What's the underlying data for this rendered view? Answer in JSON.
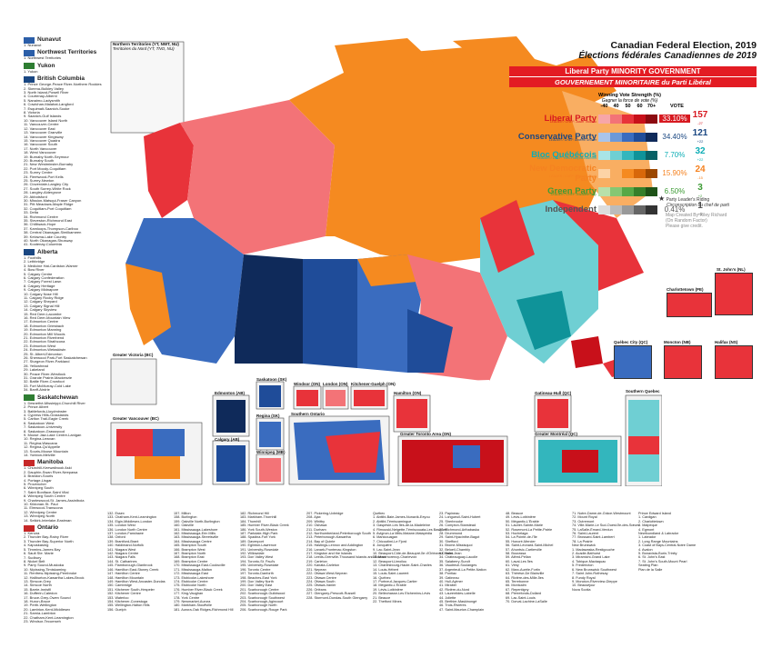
{
  "title": "Canadian Federal Election, 2019",
  "subtitle": "Élections fédérales Canadiennes de 2019",
  "government": "Liberal Party MINORITY GOVERNMENT",
  "government_fr": "GOUVERNEMENT MINORITAIRE du Parti Libéral",
  "wvs_title": "Winning Vote Strength (%)",
  "wvs_title_fr": "Gagner la force de vote (%)",
  "scale": [
    "-40",
    "40",
    "50",
    "60",
    "70+"
  ],
  "vote_header": "VOTE",
  "parties": [
    {
      "name": "Liberal Party",
      "leader": "LEADER / CHEF: Justin Trudeau",
      "vote": "33.10%",
      "seats": "157",
      "seats_sub": "-27",
      "color": "#d71920",
      "swatches": [
        "#f7a6a8",
        "#f37377",
        "#e8333a",
        "#c8101a",
        "#8c0a10"
      ]
    },
    {
      "name": "Conservative Party",
      "leader": "LEADER / CHEF: Andrew Scheer",
      "vote": "34.40%",
      "seats": "121",
      "seats_sub": "+22",
      "color": "#1a4782",
      "swatches": [
        "#a9c4ea",
        "#6c99d9",
        "#3a6cbf",
        "#1f4c99",
        "#0f2a5a"
      ]
    },
    {
      "name": "Bloc Québécois",
      "leader": "LEADER / CHEF: Yves-François Blanchet",
      "vote": "7.70%",
      "seats": "32",
      "seats_sub": "+22",
      "color": "#0dadb5",
      "swatches": [
        "#a8e4e6",
        "#6fcfd3",
        "#33b6bd",
        "#0f9399",
        "#086166"
      ]
    },
    {
      "name": "New Democratic Party",
      "leader": "LEADER / CHEF: Jagmeet Singh",
      "vote": "15.90%",
      "seats": "24",
      "seats_sub": "-15",
      "color": "#f58220",
      "swatches": [
        "#fcd3a6",
        "#f9ae62",
        "#f58a20",
        "#d8680a",
        "#9c4700"
      ]
    },
    {
      "name": "Green Party",
      "leader": "LEADER / CHEF: Elizabeth May",
      "vote": "6.50%",
      "seats": "3",
      "seats_sub": "+2",
      "color": "#3d9b35",
      "swatches": [
        "#b8e0a9",
        "#86c773",
        "#56a846",
        "#357f2a",
        "#1e5318"
      ]
    },
    {
      "name": "Independent",
      "leader": "",
      "vote": "0.41%",
      "seats": "1",
      "seats_sub": "+1",
      "color": "#555555",
      "swatches": [
        "#dddddd",
        "#bbbbbb",
        "#999999",
        "#666666",
        "#333333"
      ]
    }
  ],
  "star_legend": "Party Leader's Riding",
  "star_legend_fr": "Circonscription du chef de parti",
  "credit": [
    "Map Created By Riley Richard",
    "(On Random Factor)",
    "Please give credit."
  ],
  "insets": [
    {
      "label": "Northern Territories (YT, NWT, NU)"
    },
    {
      "label": "Greater Victoria (BC)"
    },
    {
      "label": "Greater Vancouver (BC)"
    },
    {
      "label": "Edmonton (AB)"
    },
    {
      "label": "Calgary (AB)"
    },
    {
      "label": "Saskatoon (SK)"
    },
    {
      "label": "Regina (SK)"
    },
    {
      "label": "Winnipeg (MB)"
    },
    {
      "label": "Windsor (ON)"
    },
    {
      "label": "London (ON)"
    },
    {
      "label": "Kitchener-Guelph (ON)"
    },
    {
      "label": "Hamilton (ON)"
    },
    {
      "label": "Southern Ontario"
    },
    {
      "label": "Greater Toronto Area (ON)"
    },
    {
      "label": "Gatineau-Hull (QC)"
    },
    {
      "label": "Greater Montréal (QC)"
    },
    {
      "label": "Kingston (ON)"
    },
    {
      "label": "Québec City (QC)"
    },
    {
      "label": "Moncton (NB)"
    },
    {
      "label": "Halifax (NS)"
    },
    {
      "label": "Charlottetown (PE)"
    },
    {
      "label": "St. John's (NL)"
    },
    {
      "label": "Southern Quebec"
    }
  ],
  "sidebar": {
    "provinces": [
      {
        "name": "Nunavut",
        "flag": "#2b5ea8",
        "ridings": [
          "1. Nunavut"
        ]
      },
      {
        "name": "Northwest Territories",
        "flag": "#2b5ea8",
        "ridings": [
          "1. Northwest Territories"
        ]
      },
      {
        "name": "Yukon",
        "flag": "#2e7d32",
        "ridings": [
          "1. Yukon"
        ]
      },
      {
        "name": "British Columbia",
        "flag": "#1a4782",
        "ridings": [
          "1. Prince George-Peace River-Northern Rockies",
          "2. Skeena-Bulkley Valley",
          "3. North Island-Powell River",
          "4. Courtenay-Alberni",
          "5. Nanaimo-Ladysmith",
          "6. Cowichan-Malahat-Langford",
          "7. Esquimalt-Saanich-Sooke",
          "8. Victoria",
          "9. Saanich-Gulf Islands",
          "10. Vancouver Island North",
          "11. Vancouver-Centre",
          "12. Vancouver East",
          "13. Vancouver Granville",
          "14. Vancouver Kingsway",
          "15. Vancouver Quadra",
          "16. Vancouver South",
          "17. North Vancouver",
          "18. West Vancouver",
          "19. Burnaby North-Seymour",
          "20. Burnaby South",
          "21. New Westminster-Burnaby",
          "22. Port Moody-Coquitlam",
          "23. Surrey Centre",
          "24. Fleetwood-Port Kells",
          "25. Surrey-Newton",
          "26. Cloverdale-Langley City",
          "27. South Surrey-White Rock",
          "28. Langley-Aldergrove",
          "29. Abbotsford",
          "30. Mission-Matsqui-Fraser Canyon",
          "31. Pitt Meadows-Maple Ridge",
          "32. Coquitlam-Port Coquitlam",
          "33. Delta",
          "34. Richmond Centre",
          "35. Steveston-Richmond East",
          "36. Chilliwack-Hope",
          "37. Kamloops-Thompson-Cariboo",
          "38. Central Okanagan-Similkameen",
          "39. Kelowna-Lake Country",
          "40. North Okanagan-Shuswap",
          "41. Kootenay-Columbia"
        ]
      },
      {
        "name": "Alberta",
        "flag": "#1a4782",
        "ridings": [
          "1. Foothills",
          "2. Lethbridge",
          "3. Medicine Hat-Cardston-Warner",
          "4. Bow River",
          "5. Calgary Centre",
          "6. Calgary Confederation",
          "7. Calgary Forest Lawn",
          "8. Calgary Heritage",
          "9. Calgary Midnapore",
          "10. Calgary Nose Hill",
          "11. Calgary Rocky Ridge",
          "12. Calgary Shepard",
          "13. Calgary Signal Hill",
          "14. Calgary Skyview",
          "15. Red Deer-Lacombe",
          "16. Red Deer-Mountain View",
          "17. Edmonton Centre",
          "18. Edmonton Griesbach",
          "19. Edmonton Manning",
          "20. Edmonton Mill Woods",
          "21. Edmonton Riverbend",
          "22. Edmonton Strathcona",
          "23. Edmonton West",
          "24. Edmonton-Wetaskiwin",
          "25. St. Albert-Edmonton",
          "26. Sherwood Park-Fort Saskatchewan",
          "27. Sturgeon River-Parkland",
          "28. Yellowhead",
          "29. Lakeland",
          "30. Peace River-Westlock",
          "31. Grande Prairie-Mackenzie",
          "32. Battle River-Crowfoot",
          "33. Fort McMurray-Cold Lake",
          "34. Banff-Airdrie"
        ]
      },
      {
        "name": "Saskatchewan",
        "flag": "#2e7d32",
        "ridings": [
          "1. Desnethé-Missinippi-Churchill River",
          "2. Prince Albert",
          "3. Battlefords-Lloydminster",
          "4. Cypress Hills-Grasslands",
          "5. Carlton Trail-Eagle Creek",
          "6. Saskatoon West",
          "7. Saskatoon-University",
          "8. Saskatoon-Grasswood",
          "9. Moose Jaw-Lake Centre-Lanigan",
          "10. Regina-Lewvan",
          "11. Regina-Wascana",
          "12. Regina-Qu'Appelle",
          "13. Souris-Moose Mountain",
          "14. Yorkton-Melville"
        ]
      },
      {
        "name": "Manitoba",
        "flag": "#c62828",
        "ridings": [
          "1. Churchill-Keewatinook Aski",
          "2. Dauphin-Swan River-Neepawa",
          "3. Brandon-Souris",
          "4. Portage-Lisgar",
          "5. Provencher",
          "6. Winnipeg South",
          "7. Saint Boniface-Saint Vital",
          "8. Winnipeg South Centre",
          "9. Charleswood-St. James-Assiniboia",
          "10. Kildonan-St. Paul",
          "11. Elmwood-Transcona",
          "12. Winnipeg Centre",
          "13. Winnipeg North",
          "14. Selkirk-Interlake-Eastman"
        ]
      },
      {
        "name": "Ontario",
        "flag": "#c62828",
        "ridings": [
          "1. Kenora",
          "2. Thunder Bay-Rainy River",
          "3. Thunder Bay-Superior North",
          "4. Kapuskasing",
          "5. Timmins-James Bay",
          "6. Sault Ste. Marie",
          "7. Sudbury",
          "8. Nickel Belt",
          "9. Parry Sound-Muskoka",
          "10. Nipissing-Timiskaming",
          "11. Renfrew-Nipissing-Pembroke",
          "12. Haliburton-Kawartha Lakes-Brock",
          "13. Simcoe-Grey",
          "14. Simcoe North",
          "15. Barrie-Innisfil",
          "16. Dufferin-Caledon",
          "17. Bruce-Grey-Owen Sound",
          "18. Huron-Bruce",
          "19. Perth-Wellington",
          "20. Lambton-Kent-Middlesex",
          "21. Sarnia-Lambton",
          "22. Chatham-Kent-Leamington",
          "23. Windsor-Tecumseh"
        ]
      }
    ]
  },
  "bottom_lists": [
    [
      "132. Essex",
      "133. Chatham-Kent-Leamington",
      "134. Elgin-Middlesex-London",
      "135. London West",
      "136. London North Centre",
      "137. London-Fanshawe",
      "138. Oxford",
      "139. Brantford-Brant",
      "140. Haldimand-Norfolk",
      "141. Niagara West",
      "142. Niagara Centre",
      "143. Niagara Falls",
      "144. St. Catharines",
      "145. Flamborough-Glanbrook",
      "146. Hamilton East-Stoney Creek",
      "147. Hamilton Centre",
      "148. Hamilton Mountain",
      "149. Hamilton West-Ancaster-Dundas",
      "150. Cambridge",
      "151. Kitchener South-Hespeler",
      "152. Kitchener Centre",
      "153. Waterloo",
      "154. Kitchener-Conestoga",
      "155. Wellington-Halton Hills",
      "156. Guelph"
    ],
    [
      "157. Milton",
      "158. Burlington",
      "159. Oakville North-Burlington",
      "160. Oakville",
      "161. Mississauga-Lakeshore",
      "162. Mississauga-Erin Mills",
      "163. Mississauga-Streetsville",
      "164. Mississauga Centre",
      "165. Brampton South",
      "166. Brampton West",
      "167. Brampton North",
      "168. Brampton East",
      "169. Brampton Centre",
      "170. Mississauga East-Cooksville",
      "171. Mississauga-Malton",
      "172. Mississauga East",
      "173. Etobicoke-Lakeshore",
      "174. Etobicoke Centre",
      "175. Etobicoke North",
      "176. Humber River-Black Creek",
      "177. King-Vaughan",
      "178. York Centre",
      "179. Newmarket-Aurora",
      "180. Markham-Stouffville",
      "181. Aurora-Oak Ridges-Richmond Hill"
    ],
    [
      "182. Richmond Hill",
      "183. Markham-Thornhill",
      "184. Thornhill",
      "185. Humber River-Black Creek",
      "186. York South-Weston",
      "187. Parkdale-High Park",
      "188. Spadina-Fort York",
      "189. Davenport",
      "190. Eglinton-Lawrence",
      "191. University-Rosedale",
      "192. Willowdale",
      "193. Don Valley West",
      "194. Toronto-St. Paul's",
      "195. University-Rosedale",
      "196. Toronto Centre",
      "197. Toronto-Danforth",
      "198. Beaches-East York",
      "199. Don Valley North",
      "200. Don Valley East",
      "201. Scarborough Centre",
      "202. Scarborough-Guildwood",
      "203. Scarborough Southwest",
      "204. Scarborough-Agincourt",
      "205. Scarborough North",
      "206. Scarborough-Rouge Park"
    ],
    [
      "207. Pickering-Uxbridge",
      "208. Ajax",
      "209. Whitby",
      "210. Oshawa",
      "211. Durham",
      "212. Northumberland-Peterborough South",
      "213. Peterborough-Kawartha",
      "214. Bay of Quinte",
      "215. Hastings-Lennox and Addington",
      "216. Lanark-Frontenac-Kingston",
      "217. Kingston and the Islands",
      "218. Leeds-Grenville-Thousand Islands and Rideau Lakes",
      "219. Carleton",
      "220. Kanata-Carleton",
      "221. Nepean",
      "222. Ottawa West-Nepean",
      "223. Ottawa Centre",
      "224. Ottawa South",
      "225. Ottawa-Vanier",
      "226. Orléans",
      "227. Glengarry-Prescott-Russell",
      "228. Stormont-Dundas-South Glengarry"
    ],
    [
      "Québec",
      "1. Abitibi-Baie-James-Nunavik-Eeyou",
      "2. Abitibi-Témiscamingue",
      "3. Gaspésie-Les Îles-de-la-Madeleine",
      "4. Rimouski-Neigette-Témiscouata-Les Basques",
      "5. Avignon-La Mitis-Matane-Matapédia",
      "6. Manicouagan",
      "7. Chicoutimi-Le Fjord",
      "8. Jonquière",
      "9. Lac-Saint-Jean",
      "10. Beauport-Côte-de-Beaupré-Île d'Orléans-Charlevoix",
      "11. Montmorency-Charlevoix",
      "12. Beauport-Limoilou",
      "13. Charlesbourg-Haute-Saint-Charles",
      "14. Louis-Hébert",
      "15. Louis-Saint-Laurent",
      "16. Québec",
      "17. Portneuf-Jacques-Cartier",
      "18. Mégantic-L'Érable",
      "19. Lévis-Lotbinière",
      "20. Bellechasse-Les Etchemins-Lévis",
      "21. Beauce",
      "22. Thetford Mines"
    ],
    [
      "23. Papineau",
      "24. Longueuil-Saint-Hubert",
      "25. Sherbrooke",
      "26. Compton-Stanstead",
      "27. Richmond-Arthabaska",
      "28. Drummond",
      "29. Saint-Hyacinthe-Bagot",
      "30. Shefford",
      "31. Brome-Missisquoi",
      "32. Beloeil-Chambly",
      "33. Saint-Jean",
      "34. Châteauguay-Lacolle",
      "35. Salaberry-Suroît",
      "36. Vaudreuil-Soulanges",
      "37. Argenteuil-La Petite-Nation",
      "38. Pontiac",
      "39. Gatineau",
      "40. Hull-Aylmer",
      "41. Mirabel",
      "42. Rivière-du-Nord",
      "43. Laurentides-Labelle",
      "44. Joliette",
      "45. Berthier-Maskinongé",
      "46. Trois-Rivières",
      "47. Saint-Maurice-Champlain"
    ],
    [
      "48. Beauce",
      "49. Lévis-Lotbinière",
      "50. Mégantic-L'Érable",
      "51. Laurier-Sainte-Marie",
      "52. Rosemont-La Petite-Patrie",
      "53. Hochelaga",
      "54. La Pointe-de-l'Île",
      "55. Honoré-Mercier",
      "56. Saint-Léonard-Saint-Michel",
      "57. Ahuntsic-Cartierville",
      "58. Bourassa",
      "59. Alfred-Pellan",
      "60. Laval-Les Îles",
      "61. Vimy",
      "62. Marc-Aurèle-Fortin",
      "63. Thérèse-De Blainville",
      "64. Rivière-des-Mille-Îles",
      "65. Terrebonne",
      "66. Montcalm",
      "67. Repentigny",
      "68. Pierrefonds-Dollard",
      "69. Lac-Saint-Louis",
      "70. Dorval-Lachine-LaSalle"
    ],
    [
      "71. Notre-Dame-de-Grâce-Westmount",
      "72. Mount Royal",
      "73. Outremont",
      "74. Ville-Marie-Le Sud-Ouest-Île-des-Sœurs",
      "75. LaSalle-Émard-Verdun",
      "76. Saint-Laurent",
      "77. Brossard-Saint-Lambert",
      "78. La Prairie",
      "New Brunswick",
      "1. Madawaska-Restigouche",
      "2. Acadie-Bathurst",
      "3. Miramichi-Grand Lake",
      "4. Tobique-Mactaquac",
      "5. Fredericton",
      "6. New Brunswick Southwest",
      "7. Saint John-Rothesay",
      "8. Fundy Royal",
      "9. Moncton-Riverview-Dieppe",
      "10. Beauséjour",
      "Nova Scotia"
    ],
    [
      "Prince Edward Island",
      "1. Cardigan",
      "2. Charlottetown",
      "3. Malpeque",
      "4. Egmont",
      "Newfoundland & Labrador",
      "1. Labrador",
      "2. Long Range Mountains",
      "3. Coast of Bays-Central-Notre Dame",
      "4. Avalon",
      "5. Bonavista-Burin-Trinity",
      "6. St. John's East",
      "7. St. John's South-Mount Pearl",
      "Seating Plan",
      "Plan de la Salle"
    ]
  ],
  "map_labels": {
    "north_inset_title": "Northern Territories (YT, NWT, NU)",
    "north_inset_sub": "Territoires du Nord (YT, TNO, NU)"
  }
}
